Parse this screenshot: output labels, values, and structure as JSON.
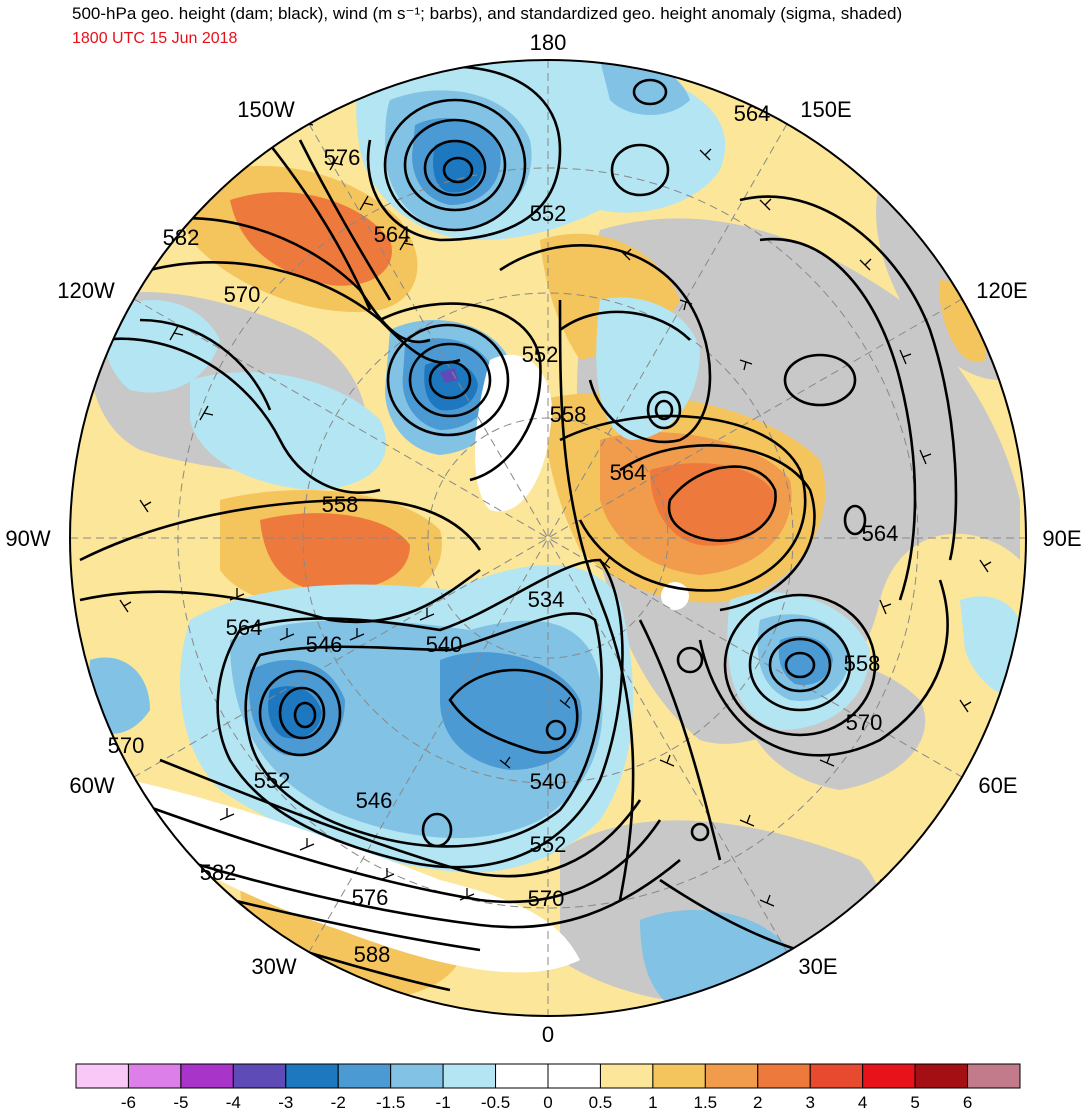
{
  "header": {
    "title": "500-hPa geo. height (dam; black), wind (m s⁻¹; barbs), and standardized geo. height anomaly (sigma, shaded)",
    "datetime": "1800 UTC 15 Jun 2018",
    "datetime_color": "#e8101a"
  },
  "map": {
    "projection": "north-polar-stereographic",
    "longitude_labels": [
      "180",
      "150E",
      "120E",
      "90E",
      "60E",
      "30E",
      "0",
      "30W",
      "60W",
      "90W",
      "120W",
      "150W"
    ],
    "contour_labels": [
      "576",
      "582",
      "564",
      "570",
      "564",
      "552",
      "552",
      "564",
      "558",
      "558",
      "564",
      "546",
      "540",
      "534",
      "558",
      "570",
      "570",
      "552",
      "546",
      "540",
      "552",
      "582",
      "576",
      "570",
      "588",
      "564"
    ]
  },
  "colorbar": {
    "ticks": [
      "-6",
      "-5",
      "-4",
      "-3",
      "-2",
      "-1.5",
      "-1",
      "-0.5",
      "0",
      "0.5",
      "1",
      "1.5",
      "2",
      "3",
      "4",
      "5",
      "6"
    ],
    "colors": [
      "#f9c8f7",
      "#dd7fe9",
      "#a834c9",
      "#5f4bb8",
      "#1d78bf",
      "#4b9ad3",
      "#82c2e4",
      "#b3e6f2",
      "#ffffff",
      "#ffffff",
      "#fbe69a",
      "#f5c55d",
      "#f19b4d",
      "#ed7a3c",
      "#e74a2f",
      "#e8131a",
      "#a30f13",
      "#c27b8a"
    ]
  },
  "colors": {
    "land_gray": "#c8c8c8",
    "map_border": "#000000"
  }
}
